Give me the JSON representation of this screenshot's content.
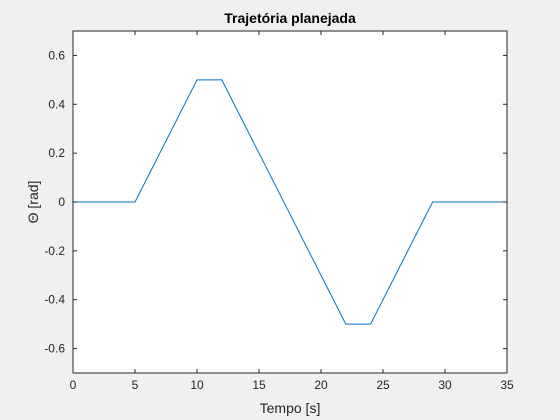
{
  "chart_data": {
    "type": "line",
    "title": "Trajetória planejada",
    "xlabel": "Tempo [s]",
    "ylabel": "Θ [rad]",
    "xlim": [
      0,
      35
    ],
    "ylim": [
      -0.7,
      0.7
    ],
    "xticks": [
      0,
      5,
      10,
      15,
      20,
      25,
      30,
      35
    ],
    "xtick_labels": [
      "0",
      "5",
      "10",
      "15",
      "20",
      "25",
      "30",
      "35"
    ],
    "yticks": [
      -0.6,
      -0.4,
      -0.2,
      0,
      0.2,
      0.4,
      0.6
    ],
    "ytick_labels": [
      "-0.6",
      "-0.4",
      "-0.2",
      "0",
      "0.2",
      "0.4",
      "0.6"
    ],
    "grid": false,
    "series": [
      {
        "color": "#0072bd",
        "x": [
          0,
          5,
          10,
          12,
          22,
          24,
          29,
          35
        ],
        "y": [
          0,
          0,
          0.5,
          0.5,
          -0.5,
          -0.5,
          0,
          0
        ]
      }
    ]
  },
  "colors": {
    "figure_background": "#f0f0f0",
    "axes_background": "#ffffff",
    "axes_color": "#262626"
  }
}
